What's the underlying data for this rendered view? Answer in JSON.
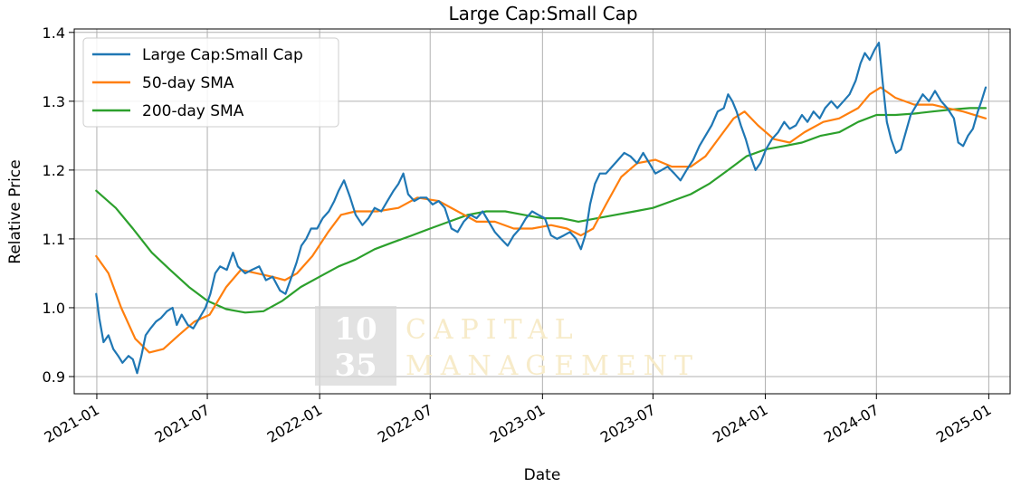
{
  "chart_data": {
    "type": "line",
    "title": "Large Cap:Small Cap",
    "xlabel": "Date",
    "ylabel": "Relative Price",
    "xlim": [
      "2020-11-25",
      "2025-02-05"
    ],
    "ylim": [
      0.875,
      1.405
    ],
    "grid": true,
    "legend_position": "top-left",
    "x_ticks": [
      "2021-01",
      "2021-07",
      "2022-01",
      "2022-07",
      "2023-01",
      "2023-07",
      "2024-01",
      "2024-07",
      "2025-01"
    ],
    "y_ticks": [
      "0.9",
      "1.0",
      "1.1",
      "1.2",
      "1.3",
      "1.4"
    ],
    "colors": {
      "ratio": "#1f77b4",
      "sma50": "#ff7f0e",
      "sma200": "#2ca02c",
      "grid": "#b0b0b0",
      "watermark_box": "#d8d8d8"
    },
    "watermark": {
      "number_top": "10",
      "number_bottom": "35",
      "line1": "CAPITAL",
      "line2": "MANAGEMENT"
    },
    "series": [
      {
        "name": "Large Cap:Small Cap",
        "key": "ratio",
        "points": [
          [
            "2020-12-31",
            1.02
          ],
          [
            "2021-01-05",
            0.985
          ],
          [
            "2021-01-12",
            0.95
          ],
          [
            "2021-01-20",
            0.96
          ],
          [
            "2021-01-28",
            0.94
          ],
          [
            "2021-02-05",
            0.93
          ],
          [
            "2021-02-12",
            0.92
          ],
          [
            "2021-02-22",
            0.93
          ],
          [
            "2021-03-01",
            0.925
          ],
          [
            "2021-03-08",
            0.905
          ],
          [
            "2021-03-15",
            0.93
          ],
          [
            "2021-03-22",
            0.96
          ],
          [
            "2021-03-30",
            0.97
          ],
          [
            "2021-04-08",
            0.98
          ],
          [
            "2021-04-16",
            0.985
          ],
          [
            "2021-04-26",
            0.995
          ],
          [
            "2021-05-05",
            1.0
          ],
          [
            "2021-05-12",
            0.975
          ],
          [
            "2021-05-20",
            0.99
          ],
          [
            "2021-05-30",
            0.975
          ],
          [
            "2021-06-08",
            0.97
          ],
          [
            "2021-06-18",
            0.985
          ],
          [
            "2021-06-28",
            1.0
          ],
          [
            "2021-07-06",
            1.02
          ],
          [
            "2021-07-14",
            1.05
          ],
          [
            "2021-07-22",
            1.06
          ],
          [
            "2021-08-02",
            1.055
          ],
          [
            "2021-08-12",
            1.08
          ],
          [
            "2021-08-20",
            1.06
          ],
          [
            "2021-09-01",
            1.05
          ],
          [
            "2021-09-12",
            1.055
          ],
          [
            "2021-09-24",
            1.06
          ],
          [
            "2021-10-05",
            1.04
          ],
          [
            "2021-10-16",
            1.045
          ],
          [
            "2021-10-28",
            1.025
          ],
          [
            "2021-11-06",
            1.02
          ],
          [
            "2021-11-14",
            1.04
          ],
          [
            "2021-11-24",
            1.065
          ],
          [
            "2021-12-02",
            1.09
          ],
          [
            "2021-12-10",
            1.1
          ],
          [
            "2021-12-18",
            1.115
          ],
          [
            "2021-12-28",
            1.115
          ],
          [
            "2022-01-06",
            1.13
          ],
          [
            "2022-01-16",
            1.14
          ],
          [
            "2022-01-25",
            1.155
          ],
          [
            "2022-02-01",
            1.17
          ],
          [
            "2022-02-10",
            1.185
          ],
          [
            "2022-02-20",
            1.16
          ],
          [
            "2022-03-01",
            1.135
          ],
          [
            "2022-03-12",
            1.12
          ],
          [
            "2022-03-22",
            1.13
          ],
          [
            "2022-04-01",
            1.145
          ],
          [
            "2022-04-12",
            1.14
          ],
          [
            "2022-04-22",
            1.155
          ],
          [
            "2022-05-02",
            1.17
          ],
          [
            "2022-05-10",
            1.18
          ],
          [
            "2022-05-18",
            1.195
          ],
          [
            "2022-05-26",
            1.165
          ],
          [
            "2022-06-05",
            1.155
          ],
          [
            "2022-06-15",
            1.16
          ],
          [
            "2022-06-25",
            1.16
          ],
          [
            "2022-07-05",
            1.15
          ],
          [
            "2022-07-15",
            1.155
          ],
          [
            "2022-07-25",
            1.145
          ],
          [
            "2022-08-05",
            1.115
          ],
          [
            "2022-08-15",
            1.11
          ],
          [
            "2022-08-25",
            1.125
          ],
          [
            "2022-09-05",
            1.135
          ],
          [
            "2022-09-15",
            1.13
          ],
          [
            "2022-09-25",
            1.14
          ],
          [
            "2022-10-05",
            1.125
          ],
          [
            "2022-10-15",
            1.11
          ],
          [
            "2022-10-25",
            1.1
          ],
          [
            "2022-11-05",
            1.09
          ],
          [
            "2022-11-15",
            1.105
          ],
          [
            "2022-11-25",
            1.115
          ],
          [
            "2022-12-05",
            1.13
          ],
          [
            "2022-12-15",
            1.14
          ],
          [
            "2022-12-25",
            1.135
          ],
          [
            "2023-01-05",
            1.13
          ],
          [
            "2023-01-15",
            1.105
          ],
          [
            "2023-01-25",
            1.1
          ],
          [
            "2023-02-05",
            1.105
          ],
          [
            "2023-02-15",
            1.11
          ],
          [
            "2023-02-25",
            1.1
          ],
          [
            "2023-03-05",
            1.085
          ],
          [
            "2023-03-12",
            1.105
          ],
          [
            "2023-03-20",
            1.15
          ],
          [
            "2023-03-28",
            1.18
          ],
          [
            "2023-04-05",
            1.195
          ],
          [
            "2023-04-15",
            1.195
          ],
          [
            "2023-04-25",
            1.205
          ],
          [
            "2023-05-05",
            1.215
          ],
          [
            "2023-05-15",
            1.225
          ],
          [
            "2023-05-25",
            1.22
          ],
          [
            "2023-06-05",
            1.21
          ],
          [
            "2023-06-15",
            1.225
          ],
          [
            "2023-06-25",
            1.21
          ],
          [
            "2023-07-05",
            1.195
          ],
          [
            "2023-07-15",
            1.2
          ],
          [
            "2023-07-25",
            1.205
          ],
          [
            "2023-08-05",
            1.195
          ],
          [
            "2023-08-15",
            1.185
          ],
          [
            "2023-08-25",
            1.2
          ],
          [
            "2023-09-05",
            1.215
          ],
          [
            "2023-09-15",
            1.235
          ],
          [
            "2023-09-25",
            1.25
          ],
          [
            "2023-10-05",
            1.265
          ],
          [
            "2023-10-15",
            1.285
          ],
          [
            "2023-10-25",
            1.29
          ],
          [
            "2023-11-01",
            1.31
          ],
          [
            "2023-11-08",
            1.3
          ],
          [
            "2023-11-15",
            1.285
          ],
          [
            "2023-11-22",
            1.265
          ],
          [
            "2023-11-30",
            1.245
          ],
          [
            "2023-12-08",
            1.22
          ],
          [
            "2023-12-16",
            1.2
          ],
          [
            "2023-12-24",
            1.21
          ],
          [
            "2024-01-02",
            1.23
          ],
          [
            "2024-01-12",
            1.245
          ],
          [
            "2024-01-22",
            1.255
          ],
          [
            "2024-02-01",
            1.27
          ],
          [
            "2024-02-10",
            1.26
          ],
          [
            "2024-02-20",
            1.265
          ],
          [
            "2024-03-01",
            1.28
          ],
          [
            "2024-03-10",
            1.27
          ],
          [
            "2024-03-20",
            1.285
          ],
          [
            "2024-03-30",
            1.275
          ],
          [
            "2024-04-08",
            1.29
          ],
          [
            "2024-04-18",
            1.3
          ],
          [
            "2024-04-28",
            1.29
          ],
          [
            "2024-05-08",
            1.3
          ],
          [
            "2024-05-18",
            1.31
          ],
          [
            "2024-05-28",
            1.33
          ],
          [
            "2024-06-05",
            1.355
          ],
          [
            "2024-06-12",
            1.37
          ],
          [
            "2024-06-20",
            1.36
          ],
          [
            "2024-06-28",
            1.375
          ],
          [
            "2024-07-05",
            1.385
          ],
          [
            "2024-07-11",
            1.33
          ],
          [
            "2024-07-18",
            1.27
          ],
          [
            "2024-07-25",
            1.245
          ],
          [
            "2024-08-02",
            1.225
          ],
          [
            "2024-08-10",
            1.23
          ],
          [
            "2024-08-18",
            1.255
          ],
          [
            "2024-08-26",
            1.28
          ],
          [
            "2024-09-05",
            1.295
          ],
          [
            "2024-09-15",
            1.31
          ],
          [
            "2024-09-25",
            1.3
          ],
          [
            "2024-10-05",
            1.315
          ],
          [
            "2024-10-15",
            1.3
          ],
          [
            "2024-10-25",
            1.29
          ],
          [
            "2024-11-05",
            1.275
          ],
          [
            "2024-11-12",
            1.24
          ],
          [
            "2024-11-20",
            1.235
          ],
          [
            "2024-11-28",
            1.25
          ],
          [
            "2024-12-06",
            1.26
          ],
          [
            "2024-12-14",
            1.285
          ],
          [
            "2024-12-20",
            1.3
          ],
          [
            "2024-12-27",
            1.32
          ]
        ]
      },
      {
        "name": "50-day SMA",
        "key": "sma50",
        "points": [
          [
            "2020-12-31",
            1.075
          ],
          [
            "2021-01-20",
            1.05
          ],
          [
            "2021-02-10",
            1.0
          ],
          [
            "2021-03-05",
            0.955
          ],
          [
            "2021-03-28",
            0.935
          ],
          [
            "2021-04-20",
            0.94
          ],
          [
            "2021-05-15",
            0.96
          ],
          [
            "2021-06-10",
            0.98
          ],
          [
            "2021-07-05",
            0.99
          ],
          [
            "2021-08-01",
            1.03
          ],
          [
            "2021-08-25",
            1.055
          ],
          [
            "2021-09-20",
            1.05
          ],
          [
            "2021-10-15",
            1.045
          ],
          [
            "2021-11-05",
            1.04
          ],
          [
            "2021-11-25",
            1.05
          ],
          [
            "2021-12-20",
            1.075
          ],
          [
            "2022-01-15",
            1.11
          ],
          [
            "2022-02-05",
            1.135
          ],
          [
            "2022-03-01",
            1.14
          ],
          [
            "2022-04-05",
            1.14
          ],
          [
            "2022-05-10",
            1.145
          ],
          [
            "2022-06-10",
            1.16
          ],
          [
            "2022-07-15",
            1.155
          ],
          [
            "2022-08-15",
            1.14
          ],
          [
            "2022-09-15",
            1.125
          ],
          [
            "2022-10-15",
            1.125
          ],
          [
            "2022-11-15",
            1.115
          ],
          [
            "2022-12-15",
            1.115
          ],
          [
            "2023-01-15",
            1.12
          ],
          [
            "2023-02-10",
            1.115
          ],
          [
            "2023-03-05",
            1.105
          ],
          [
            "2023-03-25",
            1.115
          ],
          [
            "2023-04-15",
            1.15
          ],
          [
            "2023-05-10",
            1.19
          ],
          [
            "2023-06-05",
            1.21
          ],
          [
            "2023-07-05",
            1.215
          ],
          [
            "2023-08-01",
            1.205
          ],
          [
            "2023-09-01",
            1.205
          ],
          [
            "2023-09-25",
            1.22
          ],
          [
            "2023-10-20",
            1.25
          ],
          [
            "2023-11-10",
            1.275
          ],
          [
            "2023-11-28",
            1.285
          ],
          [
            "2023-12-20",
            1.265
          ],
          [
            "2024-01-15",
            1.245
          ],
          [
            "2024-02-10",
            1.24
          ],
          [
            "2024-03-05",
            1.255
          ],
          [
            "2024-04-05",
            1.27
          ],
          [
            "2024-05-01",
            1.275
          ],
          [
            "2024-06-01",
            1.29
          ],
          [
            "2024-06-20",
            1.31
          ],
          [
            "2024-07-08",
            1.32
          ],
          [
            "2024-08-01",
            1.305
          ],
          [
            "2024-09-01",
            1.295
          ],
          [
            "2024-10-01",
            1.295
          ],
          [
            "2024-10-25",
            1.29
          ],
          [
            "2024-11-20",
            1.285
          ],
          [
            "2024-12-27",
            1.275
          ]
        ]
      },
      {
        "name": "200-day SMA",
        "key": "sma200",
        "points": [
          [
            "2020-12-31",
            1.17
          ],
          [
            "2021-02-01",
            1.145
          ],
          [
            "2021-03-01",
            1.115
          ],
          [
            "2021-04-01",
            1.08
          ],
          [
            "2021-05-01",
            1.055
          ],
          [
            "2021-06-01",
            1.03
          ],
          [
            "2021-07-01",
            1.01
          ],
          [
            "2021-08-01",
            0.998
          ],
          [
            "2021-09-01",
            0.993
          ],
          [
            "2021-10-01",
            0.995
          ],
          [
            "2021-11-01",
            1.01
          ],
          [
            "2021-12-01",
            1.03
          ],
          [
            "2022-01-01",
            1.045
          ],
          [
            "2022-02-01",
            1.06
          ],
          [
            "2022-03-01",
            1.07
          ],
          [
            "2022-04-01",
            1.085
          ],
          [
            "2022-05-01",
            1.095
          ],
          [
            "2022-06-01",
            1.105
          ],
          [
            "2022-07-01",
            1.115
          ],
          [
            "2022-08-01",
            1.125
          ],
          [
            "2022-09-01",
            1.135
          ],
          [
            "2022-10-01",
            1.14
          ],
          [
            "2022-11-01",
            1.14
          ],
          [
            "2022-12-01",
            1.135
          ],
          [
            "2023-01-01",
            1.13
          ],
          [
            "2023-02-01",
            1.13
          ],
          [
            "2023-03-01",
            1.125
          ],
          [
            "2023-04-01",
            1.13
          ],
          [
            "2023-05-01",
            1.135
          ],
          [
            "2023-06-01",
            1.14
          ],
          [
            "2023-07-01",
            1.145
          ],
          [
            "2023-08-01",
            1.155
          ],
          [
            "2023-09-01",
            1.165
          ],
          [
            "2023-10-01",
            1.18
          ],
          [
            "2023-11-01",
            1.2
          ],
          [
            "2023-12-01",
            1.22
          ],
          [
            "2024-01-01",
            1.23
          ],
          [
            "2024-02-01",
            1.235
          ],
          [
            "2024-03-01",
            1.24
          ],
          [
            "2024-04-01",
            1.25
          ],
          [
            "2024-05-01",
            1.255
          ],
          [
            "2024-06-01",
            1.27
          ],
          [
            "2024-07-01",
            1.28
          ],
          [
            "2024-08-01",
            1.28
          ],
          [
            "2024-09-01",
            1.282
          ],
          [
            "2024-10-01",
            1.285
          ],
          [
            "2024-11-01",
            1.288
          ],
          [
            "2024-12-01",
            1.29
          ],
          [
            "2024-12-27",
            1.29
          ]
        ]
      }
    ]
  }
}
